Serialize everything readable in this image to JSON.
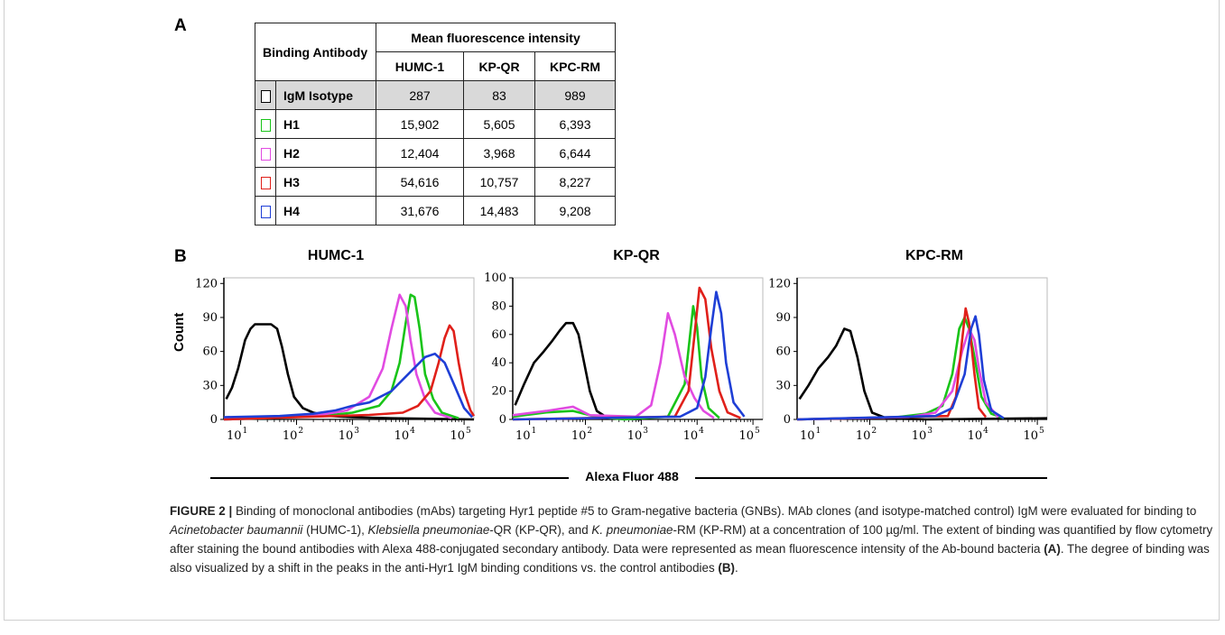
{
  "panel_labels": {
    "a": "A",
    "b": "B"
  },
  "table": {
    "header_left": "Binding Antibody",
    "header_group": "Mean fluorescence intensity",
    "columns": [
      "HUMC-1",
      "KP-QR",
      "KPC-RM"
    ],
    "rows": [
      {
        "name": "IgM Isotype",
        "color": "#000000",
        "values": [
          "287",
          "83",
          "989"
        ],
        "shaded": true
      },
      {
        "name": "H1",
        "color": "#19c419",
        "values": [
          "15,902",
          "5,605",
          "6,393"
        ],
        "shaded": false
      },
      {
        "name": "H2",
        "color": "#e14be1",
        "values": [
          "12,404",
          "3,968",
          "6,644"
        ],
        "shaded": false
      },
      {
        "name": "H3",
        "color": "#e0201a",
        "values": [
          "54,616",
          "10,757",
          "8,227"
        ],
        "shaded": false
      },
      {
        "name": "H4",
        "color": "#1f3fd6",
        "values": [
          "31,676",
          "14,483",
          "9,208"
        ],
        "shaded": false
      }
    ]
  },
  "shared_axis": {
    "ylabel": "Count",
    "xlabel": "Alexa Fluor 488"
  },
  "chart_data": [
    {
      "type": "line",
      "title": "HUMC-1",
      "x_scale": "log",
      "xlim": [
        5,
        150000
      ],
      "ylim": [
        0,
        125
      ],
      "y_ticks": [
        0,
        30,
        60,
        90,
        120
      ],
      "x_tick_labels": [
        "10",
        "10",
        "10",
        "10",
        "10"
      ],
      "x_tick_exponents": [
        "1",
        "2",
        "3",
        "4",
        "5"
      ],
      "series": [
        {
          "color": "#000000",
          "points": [
            [
              5.5,
              18
            ],
            [
              7,
              28
            ],
            [
              9,
              45
            ],
            [
              12,
              70
            ],
            [
              15,
              80
            ],
            [
              18,
              84
            ],
            [
              25,
              84
            ],
            [
              35,
              84
            ],
            [
              45,
              80
            ],
            [
              55,
              64
            ],
            [
              70,
              40
            ],
            [
              90,
              20
            ],
            [
              130,
              10
            ],
            [
              200,
              6
            ],
            [
              400,
              3
            ],
            [
              1000,
              2
            ],
            [
              5000,
              1
            ],
            [
              150000,
              0
            ]
          ]
        },
        {
          "color": "#19c419",
          "points": [
            [
              5,
              0
            ],
            [
              300,
              3
            ],
            [
              1000,
              6
            ],
            [
              3000,
              12
            ],
            [
              5000,
              25
            ],
            [
              7000,
              50
            ],
            [
              9000,
              85
            ],
            [
              11000,
              110
            ],
            [
              13000,
              108
            ],
            [
              16000,
              80
            ],
            [
              20000,
              40
            ],
            [
              28000,
              18
            ],
            [
              40000,
              6
            ],
            [
              80000,
              1
            ]
          ]
        },
        {
          "color": "#e14be1",
          "points": [
            [
              5,
              0
            ],
            [
              200,
              3
            ],
            [
              800,
              8
            ],
            [
              2000,
              20
            ],
            [
              3500,
              45
            ],
            [
              5000,
              80
            ],
            [
              7000,
              110
            ],
            [
              9000,
              100
            ],
            [
              11000,
              70
            ],
            [
              14000,
              40
            ],
            [
              20000,
              18
            ],
            [
              30000,
              6
            ],
            [
              60000,
              1
            ]
          ]
        },
        {
          "color": "#e0201a",
          "points": [
            [
              5,
              0
            ],
            [
              2000,
              4
            ],
            [
              8000,
              6
            ],
            [
              15000,
              12
            ],
            [
              25000,
              25
            ],
            [
              35000,
              50
            ],
            [
              45000,
              72
            ],
            [
              55000,
              83
            ],
            [
              65000,
              78
            ],
            [
              80000,
              50
            ],
            [
              100000,
              25
            ],
            [
              130000,
              8
            ],
            [
              150000,
              3
            ]
          ]
        },
        {
          "color": "#1f3fd6",
          "points": [
            [
              5,
              2
            ],
            [
              50,
              3
            ],
            [
              200,
              5
            ],
            [
              500,
              8
            ],
            [
              1000,
              12
            ],
            [
              2000,
              15
            ],
            [
              5000,
              25
            ],
            [
              10000,
              40
            ],
            [
              20000,
              55
            ],
            [
              30000,
              58
            ],
            [
              45000,
              50
            ],
            [
              70000,
              28
            ],
            [
              100000,
              10
            ],
            [
              140000,
              2
            ]
          ]
        }
      ]
    },
    {
      "type": "line",
      "title": "KP-QR",
      "x_scale": "log",
      "xlim": [
        5,
        150000
      ],
      "ylim": [
        0,
        100
      ],
      "y_ticks": [
        0,
        20,
        40,
        60,
        80,
        100
      ],
      "x_tick_labels": [
        "10",
        "10",
        "10",
        "10",
        "10"
      ],
      "x_tick_exponents": [
        "1",
        "2",
        "3",
        "4",
        "5"
      ],
      "series": [
        {
          "color": "#000000",
          "points": [
            [
              5.5,
              10
            ],
            [
              8,
              25
            ],
            [
              12,
              40
            ],
            [
              18,
              48
            ],
            [
              25,
              55
            ],
            [
              35,
              63
            ],
            [
              45,
              68
            ],
            [
              60,
              68
            ],
            [
              75,
              60
            ],
            [
              95,
              40
            ],
            [
              120,
              20
            ],
            [
              160,
              6
            ],
            [
              250,
              1
            ],
            [
              1000,
              0
            ]
          ]
        },
        {
          "color": "#19c419",
          "points": [
            [
              5,
              2
            ],
            [
              20,
              5
            ],
            [
              60,
              6
            ],
            [
              150,
              2
            ],
            [
              500,
              0
            ],
            [
              3000,
              2
            ],
            [
              6000,
              25
            ],
            [
              7500,
              60
            ],
            [
              8500,
              80
            ],
            [
              10000,
              65
            ],
            [
              12000,
              30
            ],
            [
              16000,
              8
            ],
            [
              25000,
              1
            ]
          ]
        },
        {
          "color": "#e14be1",
          "points": [
            [
              5,
              3
            ],
            [
              20,
              6
            ],
            [
              60,
              9
            ],
            [
              120,
              3
            ],
            [
              800,
              2
            ],
            [
              1500,
              10
            ],
            [
              2200,
              40
            ],
            [
              3000,
              75
            ],
            [
              4000,
              60
            ],
            [
              6000,
              30
            ],
            [
              9000,
              15
            ],
            [
              13000,
              6
            ],
            [
              20000,
              1
            ]
          ]
        },
        {
          "color": "#e0201a",
          "points": [
            [
              5,
              0
            ],
            [
              4000,
              2
            ],
            [
              7000,
              20
            ],
            [
              9000,
              60
            ],
            [
              11000,
              93
            ],
            [
              14000,
              85
            ],
            [
              18000,
              50
            ],
            [
              25000,
              20
            ],
            [
              35000,
              5
            ],
            [
              60000,
              1
            ]
          ]
        },
        {
          "color": "#1f3fd6",
          "points": [
            [
              5,
              0
            ],
            [
              5000,
              2
            ],
            [
              10000,
              8
            ],
            [
              14000,
              30
            ],
            [
              18000,
              65
            ],
            [
              22000,
              90
            ],
            [
              27000,
              75
            ],
            [
              33000,
              40
            ],
            [
              45000,
              12
            ],
            [
              70000,
              2
            ]
          ]
        }
      ]
    },
    {
      "type": "line",
      "title": "KPC-RM",
      "x_scale": "log",
      "xlim": [
        5,
        150000
      ],
      "ylim": [
        0,
        125
      ],
      "y_ticks": [
        0,
        30,
        60,
        90,
        120
      ],
      "x_tick_labels": [
        "10",
        "10",
        "10",
        "10",
        "10"
      ],
      "x_tick_exponents": [
        "1",
        "2",
        "3",
        "4",
        "5"
      ],
      "series": [
        {
          "color": "#000000",
          "points": [
            [
              5.5,
              18
            ],
            [
              8,
              30
            ],
            [
              12,
              45
            ],
            [
              18,
              55
            ],
            [
              25,
              65
            ],
            [
              35,
              80
            ],
            [
              45,
              78
            ],
            [
              60,
              55
            ],
            [
              80,
              25
            ],
            [
              110,
              6
            ],
            [
              200,
              1
            ],
            [
              1000,
              0
            ],
            [
              150000,
              1
            ]
          ]
        },
        {
          "color": "#19c419",
          "points": [
            [
              5,
              0
            ],
            [
              300,
              2
            ],
            [
              1000,
              5
            ],
            [
              2000,
              12
            ],
            [
              3000,
              40
            ],
            [
              4000,
              80
            ],
            [
              5000,
              90
            ],
            [
              6000,
              80
            ],
            [
              7500,
              55
            ],
            [
              10000,
              20
            ],
            [
              15000,
              5
            ],
            [
              25000,
              1
            ]
          ]
        },
        {
          "color": "#e14be1",
          "points": [
            [
              5,
              0
            ],
            [
              500,
              2
            ],
            [
              1500,
              6
            ],
            [
              3000,
              25
            ],
            [
              4500,
              60
            ],
            [
              6000,
              80
            ],
            [
              7500,
              70
            ],
            [
              9000,
              45
            ],
            [
              12000,
              15
            ],
            [
              20000,
              2
            ]
          ]
        },
        {
          "color": "#e0201a",
          "points": [
            [
              5,
              0
            ],
            [
              2500,
              3
            ],
            [
              3500,
              20
            ],
            [
              4500,
              70
            ],
            [
              5200,
              98
            ],
            [
              6000,
              85
            ],
            [
              7500,
              40
            ],
            [
              9000,
              10
            ],
            [
              12000,
              2
            ]
          ]
        },
        {
          "color": "#1f3fd6",
          "points": [
            [
              5,
              0
            ],
            [
              1500,
              3
            ],
            [
              3000,
              10
            ],
            [
              5000,
              40
            ],
            [
              6500,
              80
            ],
            [
              7800,
              91
            ],
            [
              9000,
              75
            ],
            [
              11000,
              35
            ],
            [
              15000,
              8
            ],
            [
              25000,
              1
            ]
          ]
        }
      ]
    }
  ],
  "caption": {
    "label": "FIGURE 2 |",
    "part1": " Binding of monoclonal antibodies (mAbs) targeting Hyr1 peptide #5 to Gram-negative bacteria (GNBs). MAb clones (and isotype-matched control) IgM were evaluated for binding to ",
    "italic1": "Acinetobacter baumannii",
    "part2": " (HUMC-1), ",
    "italic2": "Klebsiella pneumoniae",
    "part3": "-QR (KP-QR), and ",
    "italic3": "K. pneumoniae",
    "part4": "-RM (KP-RM) at a concentration of 100 µg/ml. The extent of binding was quantified by flow cytometry after staining the bound antibodies with Alexa 488-conjugated secondary antibody. Data were represented as mean fluorescence intensity of the Ab-bound bacteria ",
    "bold1": "(A)",
    "part5": ". The degree of binding was also visualized by a shift in the peaks in the anti-Hyr1 IgM binding conditions vs. the control antibodies ",
    "bold2": "(B)",
    "part6": "."
  }
}
